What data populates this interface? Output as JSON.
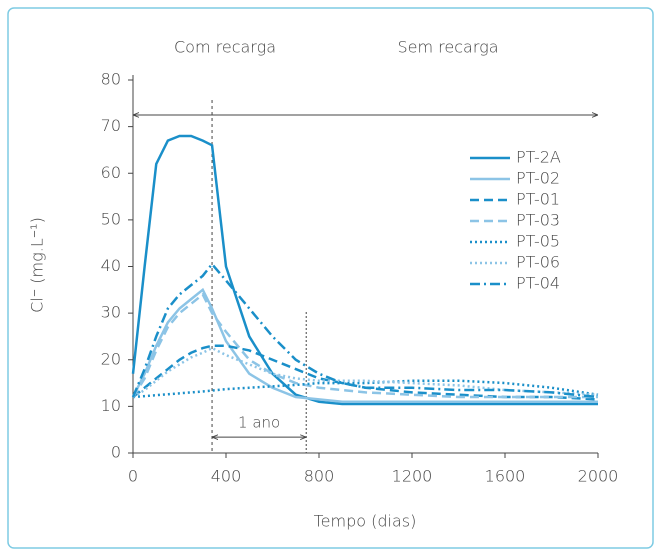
{
  "chart_data": {
    "type": "line",
    "y_label": "Cl⁻ (mg.L⁻¹)",
    "x_label": "Tempo (dias)",
    "annotations": {
      "left_period": "Com recarga",
      "right_period": "Sem recarga",
      "span": "1 ano"
    },
    "recharge_end": 340,
    "one_year_end": 745,
    "top_arrow_y": 72.5,
    "span_arrow_y": 3.4,
    "x": [
      0,
      50,
      100,
      150,
      200,
      250,
      300,
      340,
      400,
      500,
      600,
      700,
      800,
      900,
      1000,
      1200,
      1400,
      1600,
      1800,
      2000
    ],
    "series": [
      {
        "name": "PT-2A",
        "color": "#1a8fc9",
        "dash": "solid",
        "values": [
          17,
          40,
          62,
          67,
          68,
          68,
          67,
          66,
          40,
          25,
          17,
          12.5,
          11,
          10.5,
          10.5,
          10.5,
          10.5,
          10.5,
          10.5,
          10.5
        ]
      },
      {
        "name": "PT-02",
        "color": "#8cc4e6",
        "dash": "solid",
        "values": [
          12,
          17,
          23,
          28,
          31,
          33,
          35,
          31,
          24,
          17,
          14,
          12,
          11.5,
          11,
          11,
          11,
          11,
          11,
          11,
          11
        ]
      },
      {
        "name": "PT-01",
        "color": "#1a8fc9",
        "dash": "dashed",
        "values": [
          12,
          14,
          16,
          18,
          20,
          21.5,
          22.5,
          23,
          23,
          22,
          20,
          18,
          16,
          15,
          14,
          13,
          12.5,
          12,
          12,
          11.5
        ]
      },
      {
        "name": "PT-03",
        "color": "#8cc4e6",
        "dash": "dashed",
        "values": [
          12,
          16,
          22,
          27,
          30,
          32,
          34,
          30,
          26,
          20,
          17,
          15,
          14,
          13.5,
          13,
          12.5,
          12,
          12,
          12,
          12
        ]
      },
      {
        "name": "PT-05",
        "color": "#1a8fc9",
        "dash": "dotted",
        "values": [
          12,
          12.2,
          12.4,
          12.6,
          12.8,
          13,
          13.2,
          13.4,
          13.7,
          14,
          14.3,
          14.6,
          15,
          15,
          15,
          15.5,
          15.5,
          15,
          14,
          12.5
        ]
      },
      {
        "name": "PT-06",
        "color": "#8cc4e6",
        "dash": "dotted",
        "values": [
          12,
          13.5,
          15.5,
          17.5,
          19,
          20.5,
          21.5,
          22.5,
          21,
          19,
          17,
          16,
          15.5,
          15.5,
          15.5,
          15,
          14.5,
          13.5,
          13,
          12.5
        ]
      },
      {
        "name": "PT-04",
        "color": "#1a8fc9",
        "dash": "dashdot",
        "values": [
          12,
          18,
          25,
          31,
          34,
          36,
          38,
          40.5,
          37,
          31,
          25,
          20,
          17,
          15,
          14,
          14,
          13.5,
          13.5,
          13,
          12
        ]
      }
    ],
    "xlim": [
      0,
      2000
    ],
    "xticks": [
      0,
      400,
      800,
      1200,
      1600,
      2000
    ],
    "ylim": [
      0,
      80
    ],
    "yticks": [
      0,
      10,
      20,
      30,
      40,
      50,
      60,
      70,
      80
    ],
    "grid": false,
    "legend": "right"
  }
}
